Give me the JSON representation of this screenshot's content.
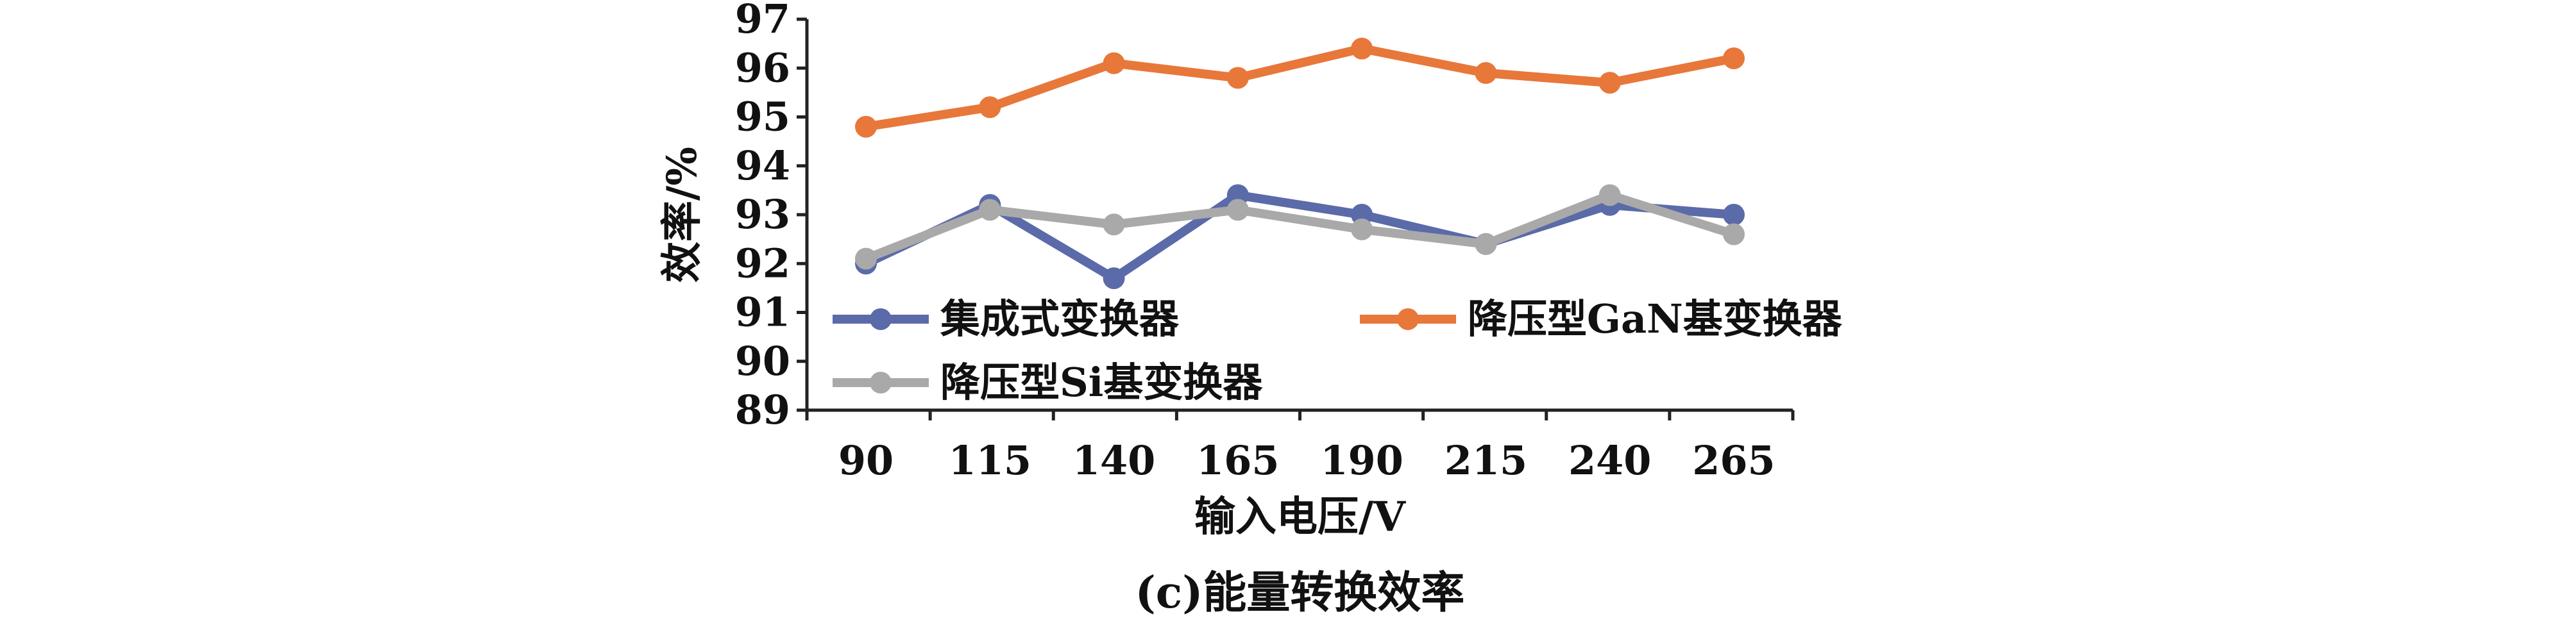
{
  "chart_data": {
    "type": "line",
    "x": [
      "90",
      "115",
      "140",
      "165",
      "190",
      "215",
      "240",
      "265"
    ],
    "xlabel": "输入电压/V",
    "ylabel": "效率/%",
    "ylim": [
      89,
      97
    ],
    "yticks": [
      "89",
      "90",
      "91",
      "92",
      "93",
      "94",
      "95",
      "96",
      "97"
    ],
    "caption": "(c)能量转换效率",
    "grid": false,
    "series": [
      {
        "name": "集成式变换器",
        "color": "#5b6aa8",
        "values": [
          92.0,
          93.2,
          91.7,
          93.4,
          93.0,
          92.4,
          93.2,
          93.0
        ]
      },
      {
        "name": "降压型GaN基变换器",
        "color": "#e8773a",
        "values": [
          94.8,
          95.2,
          96.1,
          95.8,
          96.4,
          95.9,
          95.7,
          96.2
        ]
      },
      {
        "name": "降压型Si基变换器",
        "color": "#a9a9a9",
        "values": [
          92.1,
          93.1,
          92.8,
          93.1,
          92.7,
          92.4,
          93.4,
          92.6
        ]
      }
    ]
  }
}
